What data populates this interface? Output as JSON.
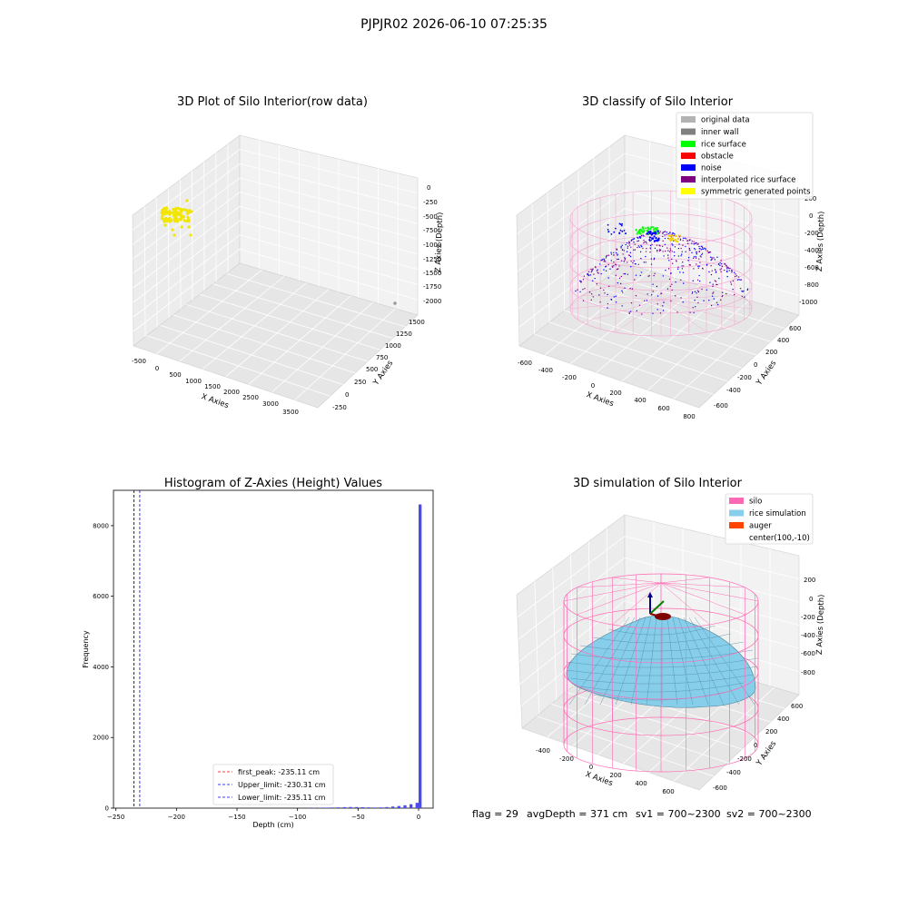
{
  "figure": {
    "suptitle": "PJPJR02 2026-06-10 07:25:35",
    "footer": {
      "flag": "flag = 29",
      "avg_depth": "avgDepth = 371 cm",
      "sv1": "sv1 = 700~2300",
      "sv2": "sv2 = 700~2300"
    }
  },
  "chart_data": [
    {
      "type": "scatter",
      "title": "3D Plot of Silo Interior(row data)",
      "xlabel": "X Axies",
      "ylabel": "Y Axies",
      "zlabel": "Z Axies (Depth)",
      "x_ticks": [
        "-500",
        "0",
        "500",
        "1000",
        "1500",
        "2000",
        "2500",
        "3000",
        "3500"
      ],
      "y_ticks": [
        "-250",
        "0",
        "250",
        "500",
        "750",
        "1000",
        "1250",
        "1500"
      ],
      "z_ticks": [
        "0",
        "-250",
        "-500",
        "-750",
        "-1000",
        "-1250",
        "-1500",
        "-1750",
        "-2000"
      ],
      "xlim": [
        -600,
        3800
      ],
      "ylim": [
        -350,
        1600
      ],
      "zlim": [
        -2100,
        100
      ],
      "colors": {
        "points": "#f2e600",
        "outlier": "#9a9a9a"
      }
    },
    {
      "type": "scatter",
      "title": "3D classify of Silo Interior",
      "xlabel": "X Axies",
      "ylabel": "Y Axies",
      "zlabel": "Z Axies (Depth)",
      "x_ticks": [
        "-600",
        "-400",
        "-200",
        "0",
        "200",
        "400",
        "600",
        "800"
      ],
      "y_ticks": [
        "-600",
        "-400",
        "-200",
        "0",
        "200",
        "400",
        "600"
      ],
      "z_ticks": [
        "200",
        "0",
        "-200",
        "-400",
        "-600",
        "-800",
        "-1000"
      ],
      "legend": [
        {
          "label": "original data",
          "color": "#b3b3b3"
        },
        {
          "label": "inner wall",
          "color": "#808080"
        },
        {
          "label": "rice surface",
          "color": "#00ff00"
        },
        {
          "label": "obstacle",
          "color": "#ff0000"
        },
        {
          "label": "noise",
          "color": "#0000ff"
        },
        {
          "label": "interpolated rice surface",
          "color": "#800080"
        },
        {
          "label": "symmetric generated points",
          "color": "#ffff00"
        }
      ],
      "legend_loc": "upper right",
      "colors": {
        "wall_mesh": "#f5a3cf"
      }
    },
    {
      "type": "bar",
      "title": "Histogram of Z-Axies (Height) Values",
      "xlabel": "Depth (cm)",
      "ylabel": "Frequency",
      "x_ticks": [
        "-250",
        "-200",
        "-150",
        "-100",
        "-50",
        "0"
      ],
      "y_ticks": [
        "0",
        "2000",
        "4000",
        "6000",
        "8000"
      ],
      "xlim": [
        -252,
        12
      ],
      "ylim": [
        0,
        9000
      ],
      "bin_width": 2.5,
      "bins": [
        {
          "x": -97.5,
          "y": 5
        },
        {
          "x": -92.5,
          "y": 8
        },
        {
          "x": -87.5,
          "y": 10
        },
        {
          "x": -82.5,
          "y": 12
        },
        {
          "x": -77.5,
          "y": 14
        },
        {
          "x": -72.5,
          "y": 18
        },
        {
          "x": -67.5,
          "y": 22
        },
        {
          "x": -62.5,
          "y": 28
        },
        {
          "x": -57.5,
          "y": 32
        },
        {
          "x": -52.5,
          "y": 30
        },
        {
          "x": -47.5,
          "y": 26
        },
        {
          "x": -42.5,
          "y": 22
        },
        {
          "x": -37.5,
          "y": 18
        },
        {
          "x": -32.5,
          "y": 20
        },
        {
          "x": -27.5,
          "y": 30
        },
        {
          "x": -22.5,
          "y": 45
        },
        {
          "x": -17.5,
          "y": 60
        },
        {
          "x": -12.5,
          "y": 80
        },
        {
          "x": -7.5,
          "y": 110
        },
        {
          "x": -2.5,
          "y": 150
        },
        {
          "x": 0,
          "y": 8600
        }
      ],
      "vlines": [
        {
          "label": "first_peak: -235.11 cm",
          "x": -235.11,
          "color": "#ff0000"
        },
        {
          "label": "Upper_limit: -230.31 cm",
          "x": -230.31,
          "color": "#0000ff"
        },
        {
          "label": "Lower_limit: -235.11 cm",
          "x": -235.11,
          "color": "#0000ff"
        }
      ],
      "colors": {
        "bars": "#4b4bf0"
      }
    },
    {
      "type": "area",
      "title": "3D simulation of Silo Interior",
      "xlabel": "X Axies",
      "ylabel": "Y Axies",
      "zlabel": "Z Axies (Depth)",
      "x_ticks": [
        "-400",
        "-200",
        "0",
        "200",
        "400",
        "600"
      ],
      "y_ticks": [
        "-600",
        "-400",
        "-200",
        "0",
        "200",
        "400",
        "600"
      ],
      "z_ticks": [
        "200",
        "0",
        "-200",
        "-400",
        "-600",
        "-800"
      ],
      "legend": [
        {
          "label": "silo",
          "color": "#ff69b4"
        },
        {
          "label": "rice simulation",
          "color": "#87ceeb"
        },
        {
          "label": "auger",
          "color": "#ff4500"
        },
        {
          "label": "center(100,-10)",
          "color": ""
        }
      ],
      "legend_loc": "upper right"
    }
  ]
}
